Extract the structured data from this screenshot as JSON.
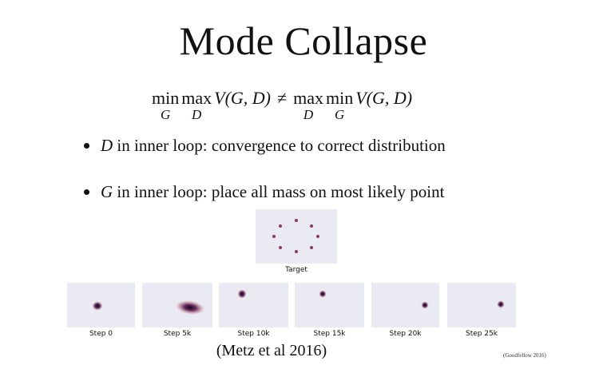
{
  "title": "Mode Collapse",
  "formula": {
    "lhs_op1": "min",
    "lhs_sub1": "G",
    "lhs_op2": "max",
    "lhs_sub2": "D",
    "lhs_expr_v": "V",
    "lhs_expr_args": "(G, D)",
    "neq": "≠",
    "rhs_op1": "max",
    "rhs_sub1": "D",
    "rhs_op2": "min",
    "rhs_sub2": "G",
    "rhs_expr_v": "V",
    "rhs_expr_args": "(G, D)"
  },
  "bullets": [
    {
      "var": "D",
      "text": " in inner loop: convergence to correct distribution"
    },
    {
      "var": "G",
      "text": " in inner loop: place all mass on most likely point"
    }
  ],
  "target_label": "Target",
  "steps": [
    {
      "label": "Step 0"
    },
    {
      "label": "Step 5k"
    },
    {
      "label": "Step 10k"
    },
    {
      "label": "Step 15k"
    },
    {
      "label": "Step 20k"
    },
    {
      "label": "Step 25k"
    }
  ],
  "citation": "(Metz et al 2016)",
  "small_citation": "(Goodfellow 2016)",
  "colors": {
    "panel_bg": "#eaeaf2",
    "blob_core": "#1a0a30",
    "blob_mid": "#7a3a6a",
    "blob_edge": "#c79aa9"
  }
}
